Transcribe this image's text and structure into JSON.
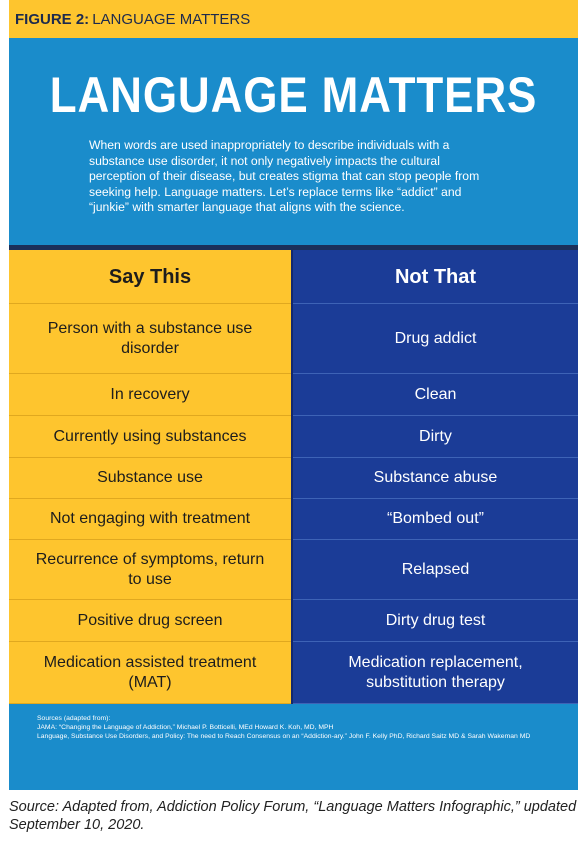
{
  "header": {
    "label": "FIGURE 2:",
    "title": "LANGUAGE MATTERS"
  },
  "title": "LANGUAGE MATTERS",
  "intro": "When words are used inappropriately to describe individuals with a substance use disorder, it not only negatively impacts the cultural perception of their disease, but creates stigma that can stop people from seeking help. Language matters. Let’s replace terms like “addict” and “junkie” with smarter language that aligns with the science.",
  "table": {
    "headers": [
      "Say This",
      "Not That"
    ],
    "rows": [
      [
        "Person with a substance use disorder",
        "Drug addict"
      ],
      [
        "In recovery",
        "Clean"
      ],
      [
        "Currently using substances",
        "Dirty"
      ],
      [
        "Substance use",
        "Substance abuse"
      ],
      [
        "Not engaging with treatment",
        "“Bombed out”"
      ],
      [
        "Recurrence of symptoms, return to use",
        "Relapsed"
      ],
      [
        "Positive drug screen",
        "Dirty drug test"
      ],
      [
        "Medication assisted treatment (MAT)",
        "Medication replacement, substitution therapy"
      ]
    ]
  },
  "sources": {
    "label": "Sources (adapted from):",
    "items": [
      "JAMA: “Changing the Language of Addiction,” Michael P. Botticelli, MEd Howard K. Koh, MD, MPH",
      "Language, Substance Use Disorders, and Policy: The need to Reach Consensus on an “Addiction-ary.” John F. Kelly PhD, Richard Saitz MD & Sarah Wakeman MD"
    ]
  },
  "caption": "Source: Adapted from, Addiction Policy Forum, “Language Matters Infographic,” updated September 10, 2020."
}
